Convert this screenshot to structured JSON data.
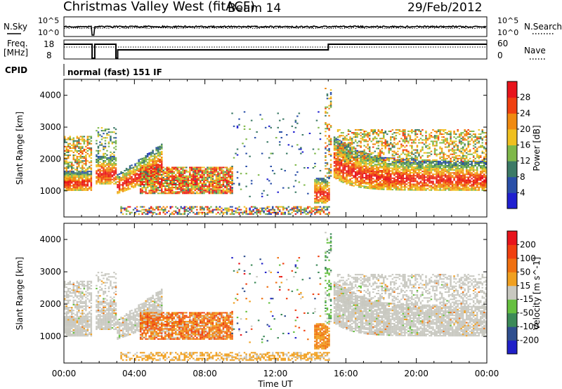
{
  "header": {
    "title": "Christmas Valley West (fitACF)",
    "beam": "Beam 14",
    "date": "29/Feb/2012"
  },
  "strip_labels": {
    "nsky": "N.Sky",
    "n_left_top": "10^5",
    "n_left_bottom": "10^0",
    "n_right_top": "10^5",
    "n_right_bottom": "10^0",
    "nsearch": "N.Search",
    "freq_1": "Freq.",
    "freq_2": "[MHz]",
    "freq_top": "18",
    "freq_bottom": "8",
    "nave_top": "60",
    "nave_bottom": "0",
    "nave": "Nave",
    "cpid": "CPID",
    "cpid_value": "normal (fast) 151 IF"
  },
  "chart_data": [
    {
      "type": "heatmap",
      "name": "power-panel",
      "ylabel": "Slant Range [km]",
      "xlabel": "",
      "yticks": [
        1000,
        2000,
        3000,
        4000
      ],
      "ylim": [
        180,
        4500
      ],
      "xlim": [
        0,
        24
      ],
      "colorbar": {
        "label": "Power [dB]",
        "ticks": [
          "4",
          "8",
          "12",
          "16",
          "20",
          "24",
          "28"
        ],
        "colors": [
          "#2020d0",
          "#2a4fa8",
          "#3c7a66",
          "#7fb84a",
          "#f0c020",
          "#f08a10",
          "#f04010",
          "#e8141c"
        ]
      }
    },
    {
      "type": "heatmap",
      "name": "velocity-panel",
      "ylabel": "Slant Range [km]",
      "xlabel": "Time UT",
      "xticks": [
        "00:00",
        "04:00",
        "08:00",
        "12:00",
        "16:00",
        "20:00",
        "00:00"
      ],
      "yticks": [
        1000,
        2000,
        3000,
        4000
      ],
      "ylim": [
        180,
        4500
      ],
      "xlim": [
        0,
        24
      ],
      "colorbar": {
        "label": "Velocity [m s^-1]",
        "ticks": [
          "200",
          "100",
          "50",
          "15",
          "-15",
          "-50",
          "-100",
          "-200"
        ],
        "colors": [
          "#2020c8",
          "#2f4f8f",
          "#3c8a58",
          "#66c040",
          "#c8c8c0",
          "#f0a020",
          "#f07010",
          "#f04010",
          "#e8141c"
        ]
      }
    }
  ],
  "colors": {
    "ground_scatter": "#c8c8c0",
    "accent_red": "#e8141c",
    "accent_orange": "#f08a10"
  }
}
